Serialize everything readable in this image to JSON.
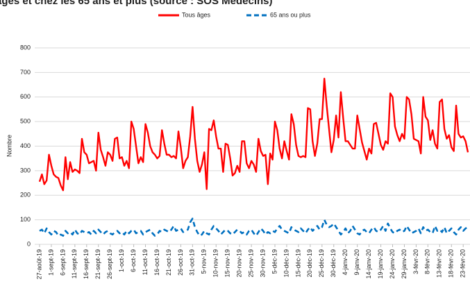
{
  "chart_data": {
    "type": "line",
    "title": "âges et chez les 65 ans et plus (source : SOS Médecins)",
    "y_label": "Nombre",
    "categories": [
      "27-août-19",
      null,
      null,
      null,
      null,
      "1-sept-19",
      null,
      null,
      null,
      null,
      "6-sept-19",
      null,
      null,
      null,
      null,
      "11-sept-19",
      null,
      null,
      null,
      null,
      "16-sept-19",
      null,
      null,
      null,
      null,
      "21-sept-19",
      null,
      null,
      null,
      null,
      "26-sept-19",
      null,
      null,
      null,
      null,
      "1-oct-19",
      null,
      null,
      null,
      null,
      "6-oct-19",
      null,
      null,
      null,
      null,
      "11-oct-19",
      null,
      null,
      null,
      null,
      "16-oct-19",
      null,
      null,
      null,
      null,
      "21-oct-19",
      null,
      null,
      null,
      null,
      "26-oct-19",
      null,
      null,
      null,
      null,
      "31-oct-19",
      null,
      null,
      null,
      null,
      "5-nov-19",
      null,
      null,
      null,
      null,
      "10-nov-19",
      null,
      null,
      null,
      null,
      "15-nov-19",
      null,
      null,
      null,
      null,
      "20-nov-19",
      null,
      null,
      null,
      null,
      "25-nov-19",
      null,
      null,
      null,
      null,
      "30-nov-19",
      null,
      null,
      null,
      null,
      "5-déc-19",
      null,
      null,
      null,
      null,
      "10-déc-19",
      null,
      null,
      null,
      null,
      "15-déc-19",
      null,
      null,
      null,
      null,
      "20-déc-19",
      null,
      null,
      null,
      null,
      "25-déc-19",
      null,
      null,
      null,
      null,
      "30-déc-19",
      null,
      null,
      null,
      null,
      "4-janv-20",
      null,
      null,
      null,
      null,
      "9-janv-20",
      null,
      null,
      null,
      null,
      "14-janv-20",
      null,
      null,
      null,
      null,
      "19-janv-20",
      null,
      null,
      null,
      null,
      "24-janv-20",
      null,
      null,
      null,
      null,
      "29-janv-20",
      null,
      null,
      null,
      null,
      "3-févr-20",
      null,
      null,
      null,
      null,
      "8-févr-20",
      null,
      null,
      null,
      null,
      "13-févr-20",
      null,
      null,
      null,
      null,
      "18-févr-20",
      null,
      null,
      null,
      null,
      "23-févr-20",
      null,
      null
    ],
    "series": [
      {
        "name": "Tous âges",
        "color": "#ff0000",
        "dashed": false,
        "values": [
          255,
          285,
          245,
          260,
          365,
          320,
          285,
          275,
          270,
          240,
          220,
          355,
          265,
          335,
          295,
          305,
          300,
          290,
          430,
          375,
          365,
          330,
          335,
          340,
          300,
          455,
          385,
          355,
          320,
          375,
          365,
          340,
          430,
          435,
          350,
          355,
          320,
          340,
          310,
          500,
          470,
          400,
          330,
          355,
          335,
          490,
          455,
          400,
          375,
          365,
          350,
          360,
          465,
          410,
          365,
          365,
          355,
          360,
          350,
          460,
          395,
          310,
          340,
          355,
          440,
          560,
          430,
          340,
          295,
          325,
          375,
          225,
          470,
          465,
          505,
          440,
          390,
          390,
          295,
          410,
          405,
          350,
          280,
          290,
          320,
          295,
          420,
          420,
          330,
          310,
          340,
          325,
          295,
          430,
          380,
          360,
          365,
          245,
          370,
          345,
          500,
          465,
          390,
          350,
          420,
          380,
          345,
          530,
          490,
          405,
          360,
          355,
          360,
          355,
          555,
          550,
          420,
          360,
          410,
          510,
          510,
          675,
          565,
          470,
          375,
          425,
          525,
          435,
          620,
          515,
          420,
          420,
          405,
          390,
          390,
          525,
          470,
          415,
          380,
          345,
          390,
          370,
          490,
          495,
          450,
          405,
          385,
          420,
          410,
          615,
          600,
          480,
          445,
          420,
          450,
          430,
          600,
          590,
          530,
          430,
          425,
          420,
          370,
          600,
          520,
          505,
          425,
          465,
          410,
          390,
          580,
          590,
          470,
          430,
          445,
          395,
          380,
          565,
          450,
          435,
          440,
          420,
          375
        ]
      },
      {
        "name": "65 ans ou plus",
        "color": "#0070c0",
        "dashed": true,
        "values": [
          55,
          60,
          45,
          65,
          50,
          40,
          55,
          50,
          35,
          40,
          35,
          55,
          45,
          50,
          40,
          60,
          45,
          40,
          55,
          50,
          45,
          50,
          40,
          55,
          45,
          60,
          50,
          40,
          50,
          55,
          45,
          40,
          50,
          55,
          45,
          50,
          40,
          55,
          45,
          55,
          60,
          45,
          50,
          55,
          40,
          50,
          55,
          60,
          45,
          35,
          40,
          55,
          50,
          60,
          55,
          50,
          60,
          75,
          55,
          60,
          65,
          50,
          55,
          60,
          90,
          105,
          70,
          50,
          35,
          40,
          55,
          45,
          40,
          60,
          75,
          65,
          55,
          40,
          50,
          60,
          55,
          45,
          40,
          50,
          60,
          55,
          45,
          50,
          40,
          55,
          60,
          45,
          35,
          50,
          65,
          55,
          40,
          50,
          45,
          55,
          50,
          65,
          75,
          60,
          55,
          50,
          45,
          70,
          60,
          55,
          50,
          65,
          55,
          45,
          60,
          70,
          55,
          65,
          75,
          60,
          70,
          100,
          80,
          70,
          75,
          85,
          70,
          55,
          40,
          50,
          65,
          45,
          55,
          75,
          60,
          45,
          40,
          55,
          60,
          50,
          45,
          60,
          70,
          55,
          50,
          60,
          75,
          55,
          85,
          65,
          50,
          45,
          55,
          60,
          50,
          55,
          75,
          60,
          45,
          50,
          55,
          65,
          45,
          70,
          55,
          60,
          50,
          45,
          75,
          55,
          60,
          50,
          70,
          45,
          55,
          65,
          50,
          40,
          60,
          70,
          55,
          65,
          70
        ]
      }
    ],
    "ylim": [
      0,
      800
    ],
    "yticks": [
      0,
      100,
      200,
      300,
      400,
      500,
      600,
      700,
      800
    ],
    "grid": true
  }
}
